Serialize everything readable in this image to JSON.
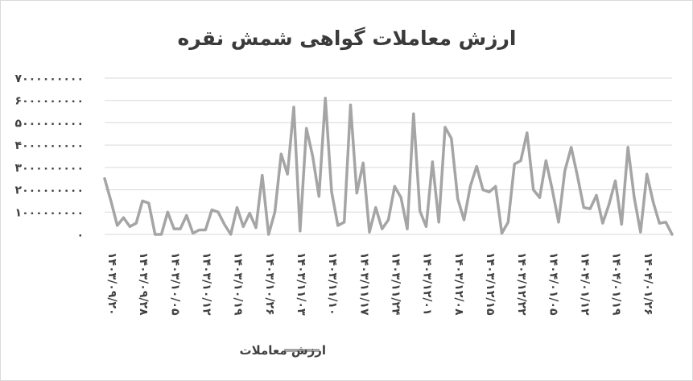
{
  "chart_data": {
    "type": "line",
    "title": "ارزش معاملات گواهی شمش نقره",
    "legend_position": "bottom",
    "grid": true,
    "ylim": [
      0,
      7000000000
    ],
    "y_ticks": [
      {
        "value": 0,
        "label": "0"
      },
      {
        "value": 1000000000,
        "label": "1000000000"
      },
      {
        "value": 2000000000,
        "label": "2000000000"
      },
      {
        "value": 3000000000,
        "label": "3000000000"
      },
      {
        "value": 4000000000,
        "label": "4000000000"
      },
      {
        "value": 5000000000,
        "label": "5000000000"
      },
      {
        "value": 6000000000,
        "label": "6000000000"
      },
      {
        "value": 7000000000,
        "label": "7000000000"
      }
    ],
    "x_tick_labels": [
      {
        "index": 0,
        "label": "1403/09/20"
      },
      {
        "index": 5,
        "label": "1403/09/28"
      },
      {
        "index": 10,
        "label": "1403/10/05"
      },
      {
        "index": 15,
        "label": "1403/10/12"
      },
      {
        "index": 20,
        "label": "1403/10/19"
      },
      {
        "index": 25,
        "label": "1403/10/26"
      },
      {
        "index": 30,
        "label": "1403/11/03"
      },
      {
        "index": 35,
        "label": "1403/11/10"
      },
      {
        "index": 40,
        "label": "1403/11/17"
      },
      {
        "index": 45,
        "label": "1403/11/24"
      },
      {
        "index": 50,
        "label": "1403/12/01"
      },
      {
        "index": 55,
        "label": "1403/12/08"
      },
      {
        "index": 60,
        "label": "1403/12/15"
      },
      {
        "index": 65,
        "label": "1403/12/22"
      },
      {
        "index": 70,
        "label": "1404/01/05"
      },
      {
        "index": 75,
        "label": "1404/01/12"
      },
      {
        "index": 80,
        "label": "1404/01/19"
      },
      {
        "index": 85,
        "label": "1404/01/26"
      }
    ],
    "series": [
      {
        "name": "ارزش معاملات",
        "color": "#a5a5a5",
        "values": [
          2500000000,
          1500000000,
          400000000,
          750000000,
          350000000,
          500000000,
          1500000000,
          1400000000,
          0,
          0,
          1000000000,
          250000000,
          250000000,
          850000000,
          50000000,
          200000000,
          200000000,
          1100000000,
          1000000000,
          450000000,
          0,
          1200000000,
          350000000,
          950000000,
          300000000,
          2650000000,
          0,
          1000000000,
          3600000000,
          2700000000,
          5700000000,
          150000000,
          4750000000,
          3500000000,
          1700000000,
          6100000000,
          1900000000,
          400000000,
          550000000,
          5800000000,
          1850000000,
          3200000000,
          100000000,
          1200000000,
          250000000,
          650000000,
          2150000000,
          1650000000,
          250000000,
          5400000000,
          1050000000,
          350000000,
          3250000000,
          550000000,
          4800000000,
          4300000000,
          1600000000,
          650000000,
          2150000000,
          3050000000,
          2000000000,
          1900000000,
          2150000000,
          50000000,
          550000000,
          3150000000,
          3300000000,
          4550000000,
          2000000000,
          1650000000,
          3300000000,
          2000000000,
          550000000,
          2850000000,
          3900000000,
          2600000000,
          1200000000,
          1150000000,
          1750000000,
          500000000,
          1350000000,
          2400000000,
          450000000,
          3900000000,
          1650000000,
          100000000,
          2700000000,
          1450000000,
          500000000,
          550000000,
          0
        ]
      }
    ]
  }
}
